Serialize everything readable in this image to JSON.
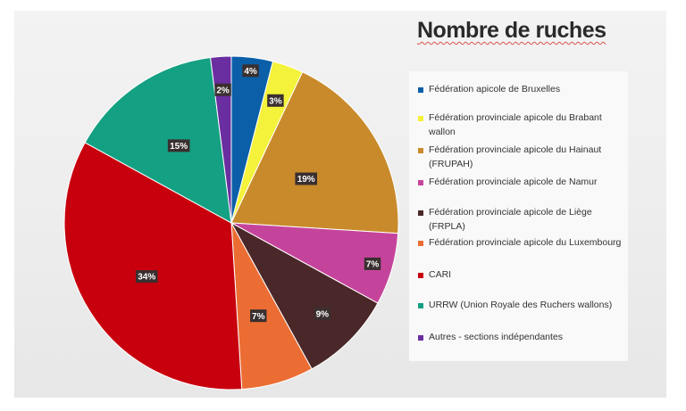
{
  "chart_data": {
    "type": "pie",
    "title": "Nombre de ruches",
    "legend_position": "right",
    "slices": [
      {
        "label": "Fédération apicole de Bruxelles",
        "value": 4,
        "data_label": "4%",
        "color": "#0a5fa8"
      },
      {
        "label": "Fédération provinciale apicole du Brabant wallon",
        "value": 3,
        "data_label": "3%",
        "color": "#f4f23a"
      },
      {
        "label": "Fédération provinciale apicole du Hainaut (FRUPAH)",
        "value": 19,
        "data_label": "19%",
        "color": "#c98a2b"
      },
      {
        "label": "Fédération provinciale apicole de Namur",
        "value": 7,
        "data_label": "7%",
        "color": "#c5449b"
      },
      {
        "label": "Fédération provinciale apicole de Liège (FRPLA)",
        "value": 9,
        "data_label": "9%",
        "color": "#4a2728"
      },
      {
        "label": "Fédération provinciale apicole du Luxembourg",
        "value": 7,
        "data_label": "7%",
        "color": "#eb6d33"
      },
      {
        "label": "CARI",
        "value": 34,
        "data_label": "34%",
        "color": "#c8000e"
      },
      {
        "label": "URRW (Union Royale des Ruchers wallons)",
        "value": 15,
        "data_label": "15%",
        "color": "#14a082"
      },
      {
        "label": "Autres - sections indépendantes",
        "value": 2,
        "data_label": "2%",
        "color": "#6a2ea0"
      }
    ]
  }
}
